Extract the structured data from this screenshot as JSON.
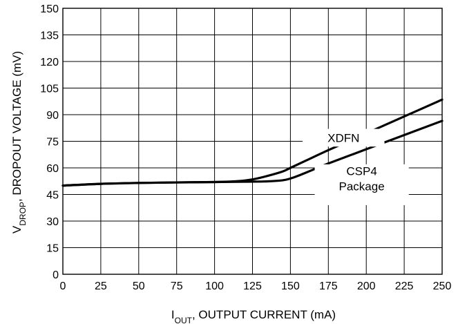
{
  "chart_data": {
    "type": "line",
    "xlabel": {
      "main": "I",
      "sub": "OUT",
      "rest": ", OUTPUT CURRENT (mA)"
    },
    "ylabel": {
      "main": "V",
      "sub": "DROP",
      "rest": ", DROPOUT VOLTAGE (mV)"
    },
    "xlim": [
      0,
      250
    ],
    "ylim": [
      0,
      150
    ],
    "xticks": [
      0,
      25,
      50,
      75,
      100,
      125,
      150,
      175,
      200,
      225,
      250
    ],
    "yticks": [
      0,
      15,
      30,
      45,
      60,
      75,
      90,
      105,
      120,
      135,
      150
    ],
    "grid": true,
    "series": [
      {
        "name": "XDFN",
        "label_lines": [
          "XDFN"
        ],
        "x": [
          0,
          25,
          50,
          75,
          100,
          115,
          125,
          135,
          145,
          150,
          160,
          175,
          200,
          225,
          250
        ],
        "y": [
          50,
          51,
          51.5,
          51.8,
          52,
          52.5,
          53.5,
          55.5,
          58,
          60,
          64,
          70,
          79.5,
          89,
          98.5
        ]
      },
      {
        "name": "CSP4 Package",
        "label_lines": [
          "CSP4",
          "Package"
        ],
        "x": [
          0,
          25,
          50,
          75,
          100,
          120,
          135,
          145,
          150,
          155,
          165,
          175,
          200,
          225,
          250
        ],
        "y": [
          50,
          51,
          51.5,
          51.8,
          52,
          52.2,
          52.4,
          53,
          54,
          55.5,
          59,
          62.5,
          70.5,
          78.5,
          86.5
        ]
      }
    ]
  }
}
